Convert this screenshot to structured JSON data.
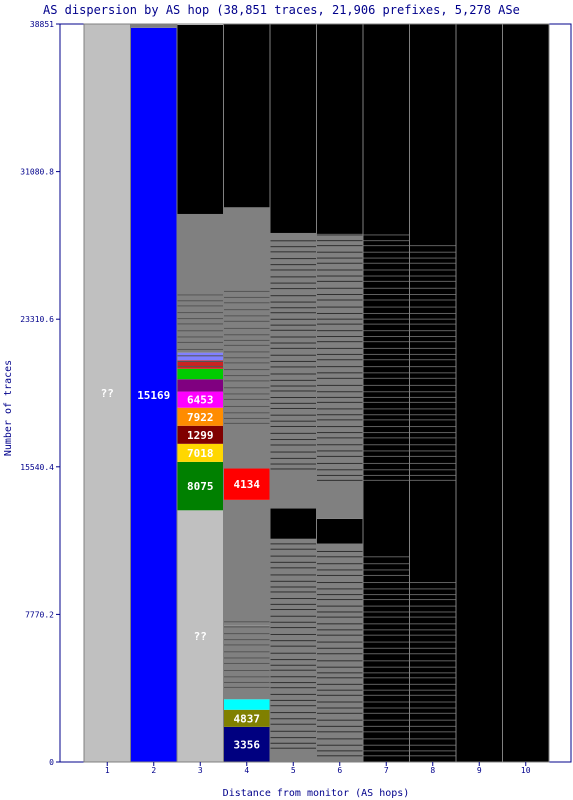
{
  "chart_data": {
    "type": "bar",
    "title": "AS dispersion by AS hop (38,851 traces, 21,906 prefixes, 5,278 ASe",
    "xlabel": "Distance from monitor (AS hops)",
    "ylabel": "Number of traces",
    "ylim": [
      0,
      38851
    ],
    "y_ticks": [
      "38851",
      "31080.8",
      "23310.6",
      "15540.4",
      "7770.2",
      "0"
    ],
    "y_tick_values": [
      38851,
      31080.8,
      23310.6,
      15540.4,
      7770.2,
      0
    ],
    "categories": [
      "1",
      "2",
      "3",
      "4",
      "5",
      "6",
      "7",
      "8",
      "9",
      "10"
    ],
    "colors": {
      "background": "#000000",
      "unknown": "#c0c0c0",
      "many_small": "#808080",
      "axis_text": "#00008b"
    },
    "columns": [
      {
        "hop": "1",
        "segments": [
          {
            "value": 38851,
            "color": "#c0c0c0",
            "label": "??"
          }
        ]
      },
      {
        "hop": "2",
        "segments": [
          {
            "value": 38651,
            "color": "#0000ff",
            "label": "15169"
          },
          {
            "value": 200,
            "color": "#808080",
            "label": ""
          }
        ]
      },
      {
        "hop": "3",
        "segments": [
          {
            "value": 13250,
            "color": "#c0c0c0",
            "label": "??"
          },
          {
            "value": 2550,
            "color": "#008000",
            "label": "8075"
          },
          {
            "value": 950,
            "color": "#ffd700",
            "label": "7018"
          },
          {
            "value": 950,
            "color": "#800000",
            "label": "1299"
          },
          {
            "value": 950,
            "color": "#ff8c00",
            "label": "7922"
          },
          {
            "value": 850,
            "color": "#ff00ff",
            "label": "6453"
          },
          {
            "value": 650,
            "color": "#800080",
            "label": ""
          },
          {
            "value": 550,
            "color": "#00cc00",
            "label": ""
          },
          {
            "value": 450,
            "color": "#cc2222",
            "label": ""
          },
          {
            "value": 400,
            "color": "#8080ff",
            "label": ""
          },
          {
            "value": 7300,
            "color": "#808080",
            "label": ""
          },
          {
            "value": 9951,
            "color": "#000000",
            "label": ""
          }
        ]
      },
      {
        "hop": "4",
        "segments": [
          {
            "value": 1850,
            "color": "#000080",
            "label": "3356"
          },
          {
            "value": 900,
            "color": "#808000",
            "label": "4837"
          },
          {
            "value": 550,
            "color": "#00ffff",
            "label": ""
          },
          {
            "value": 3900,
            "color": "#808080",
            "label": ""
          },
          {
            "value": 6600,
            "color": "#808080",
            "label": ""
          },
          {
            "value": 1650,
            "color": "#ff0000",
            "label": "4134"
          },
          {
            "value": 13750,
            "color": "#808080",
            "label": ""
          },
          {
            "value": 9651,
            "color": "#000000",
            "label": ""
          }
        ]
      },
      {
        "hop": "5",
        "segments": [
          {
            "value": 500,
            "color": "#808080",
            "label": ""
          },
          {
            "value": 11250,
            "color": "#808080",
            "label": ""
          },
          {
            "value": 1600,
            "color": "#000000",
            "label": ""
          },
          {
            "value": 14500,
            "color": "#808080",
            "label": ""
          },
          {
            "value": 11001,
            "color": "#000000",
            "label": ""
          }
        ]
      },
      {
        "hop": "6",
        "segments": [
          {
            "value": 11500,
            "color": "#808080",
            "label": ""
          },
          {
            "value": 1300,
            "color": "#000000",
            "label": ""
          },
          {
            "value": 15000,
            "color": "#808080",
            "label": ""
          },
          {
            "value": 11051,
            "color": "#000000",
            "label": ""
          }
        ]
      },
      {
        "hop": "7",
        "segments": [
          {
            "value": 38851,
            "color": "#000000",
            "label": ""
          }
        ]
      },
      {
        "hop": "8",
        "segments": [
          {
            "value": 38851,
            "color": "#000000",
            "label": ""
          }
        ]
      },
      {
        "hop": "9",
        "segments": [
          {
            "value": 38851,
            "color": "#000000",
            "label": ""
          }
        ]
      },
      {
        "hop": "10",
        "segments": [
          {
            "value": 38851,
            "color": "#000000",
            "label": ""
          }
        ]
      }
    ],
    "stripes": [
      {
        "hop": "3",
        "from": 20800,
        "to": 24800,
        "color": "#555555"
      },
      {
        "hop": "4",
        "from": 3900,
        "to": 7500,
        "color": "#555555"
      },
      {
        "hop": "4",
        "from": 17800,
        "to": 24800,
        "color": "#555555"
      },
      {
        "hop": "5",
        "from": 700,
        "to": 11500,
        "color": "#303030"
      },
      {
        "hop": "5",
        "from": 15400,
        "to": 27500,
        "color": "#303030"
      },
      {
        "hop": "6",
        "from": 300,
        "to": 11200,
        "color": "#303030"
      },
      {
        "hop": "6",
        "from": 14800,
        "to": 27800,
        "color": "#303030"
      },
      {
        "hop": "7",
        "from": 300,
        "to": 11000,
        "color": "#606060"
      },
      {
        "hop": "7",
        "from": 14800,
        "to": 28000,
        "color": "#606060"
      },
      {
        "hop": "8",
        "from": 300,
        "to": 9500,
        "color": "#606060"
      },
      {
        "hop": "8",
        "from": 14800,
        "to": 27300,
        "color": "#606060"
      }
    ],
    "legend": "none",
    "grid": false
  }
}
